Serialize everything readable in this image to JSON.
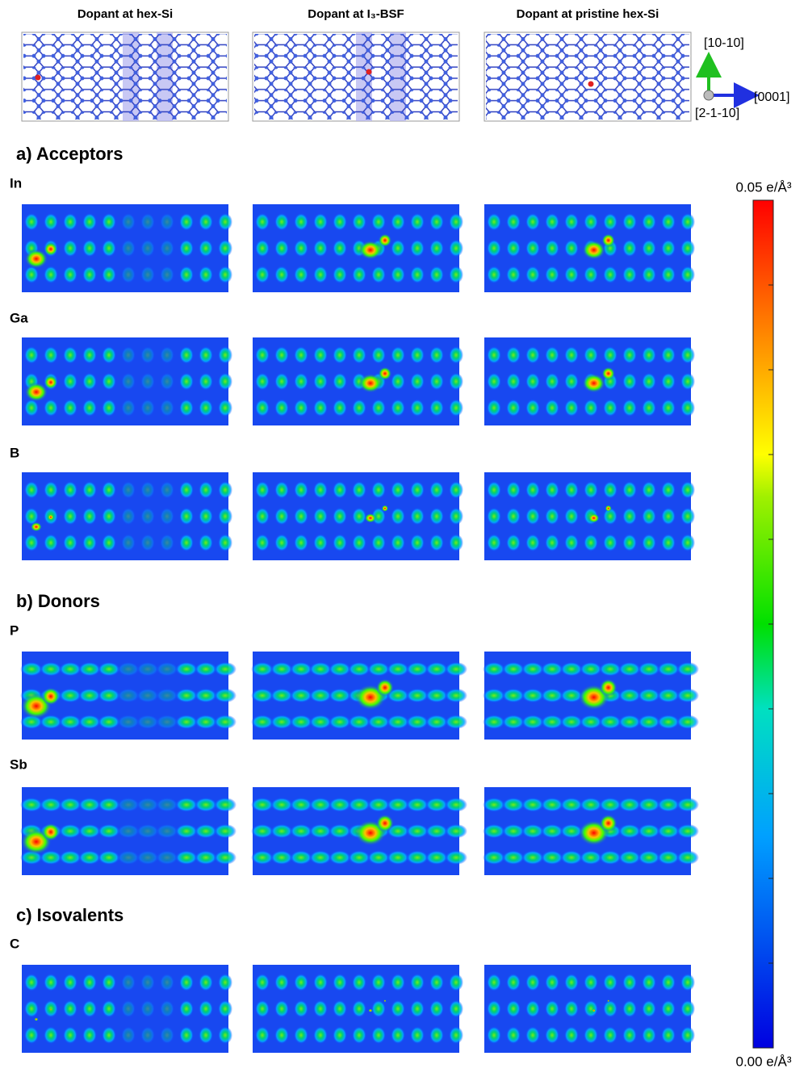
{
  "columns": [
    "Dopant at hex-Si",
    "Dopant at I₃-BSF",
    "Dopant at pristine hex-Si"
  ],
  "axes": {
    "up": "[10-10]",
    "right": "[0001]",
    "out": "[2-1-10]"
  },
  "sections": [
    {
      "title": "a) Acceptors",
      "rows": [
        "In",
        "Ga",
        "B"
      ]
    },
    {
      "title": "b) Donors",
      "rows": [
        "P",
        "Sb"
      ]
    },
    {
      "title": "c) Isovalents",
      "rows": [
        "C"
      ]
    }
  ],
  "colorbar": {
    "max": "0.05 e/Å³",
    "min": "0.00 e/Å³"
  }
}
